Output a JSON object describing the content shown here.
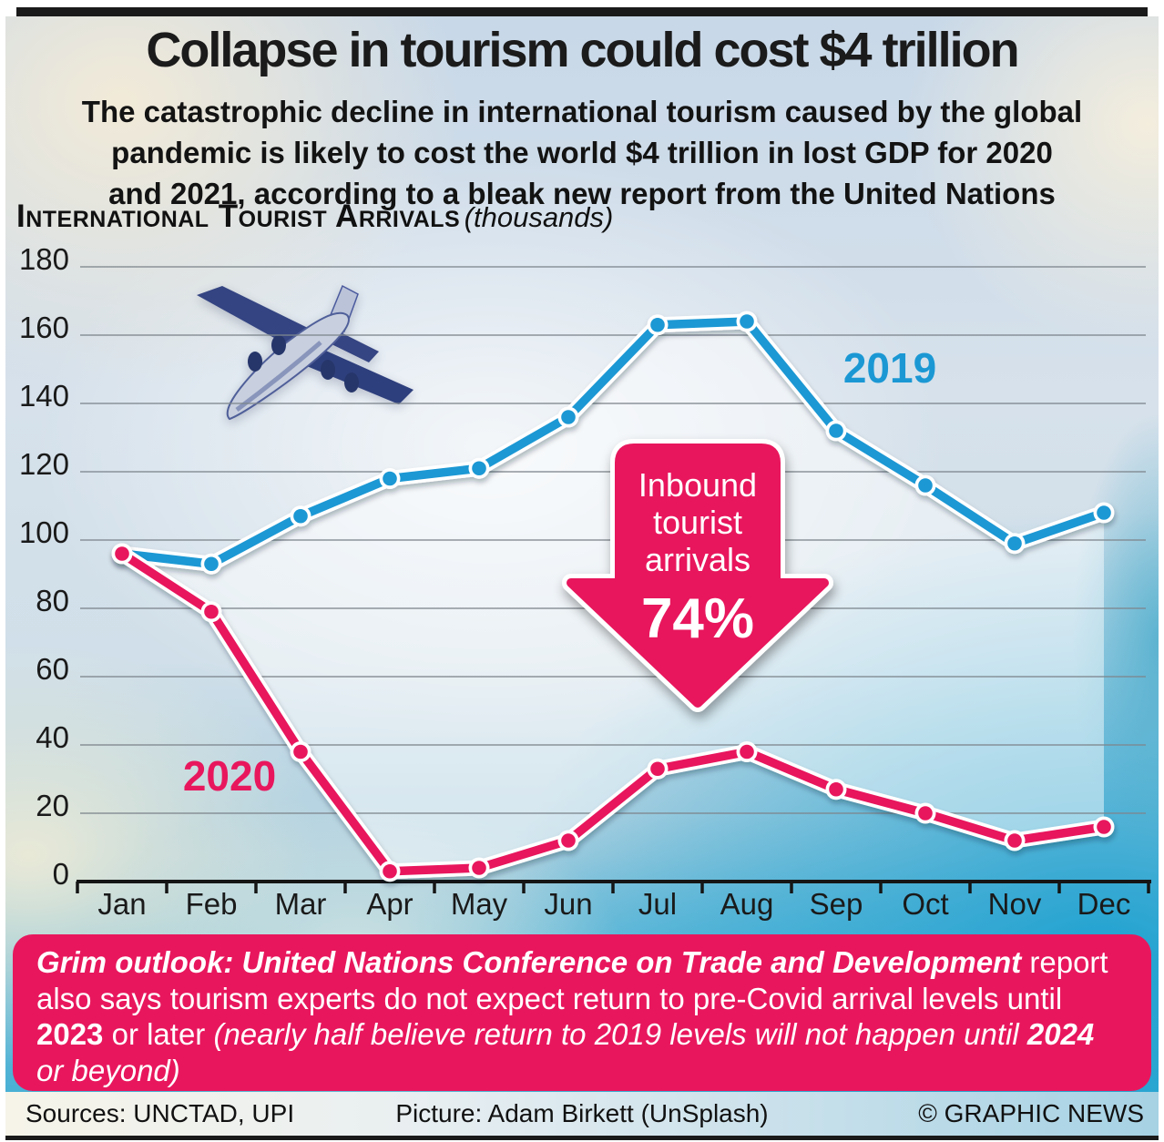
{
  "colors": {
    "blue": "#1b98d4",
    "red": "#e8175d",
    "grid": "#7e868d",
    "ink": "#1a1a1a",
    "fill_between": "rgba(255,255,255,0.47)"
  },
  "header": {
    "title": "Collapse in tourism could cost $4 trillion",
    "subtitle_lines": [
      "The catastrophic decline in international tourism caused by the global",
      "pandemic is likely to cost the world $4 trillion in lost GDP for 2020",
      "and 2021, according to a bleak new report from the United Nations"
    ]
  },
  "section": {
    "label": "International Tourist Arrivals",
    "unit": "(thousands)"
  },
  "chart_data": {
    "type": "line",
    "title": "International Tourist Arrivals (thousands)",
    "categories": [
      "Jan",
      "Feb",
      "Mar",
      "Apr",
      "May",
      "Jun",
      "Jul",
      "Aug",
      "Sep",
      "Oct",
      "Nov",
      "Dec"
    ],
    "series": [
      {
        "name": "2019",
        "color": "#1b98d4",
        "values": [
          96,
          93,
          107,
          118,
          121,
          136,
          163,
          164,
          132,
          116,
          99,
          108
        ]
      },
      {
        "name": "2020",
        "color": "#e8175d",
        "values": [
          96,
          79,
          38,
          3,
          4,
          12,
          33,
          38,
          27,
          20,
          12,
          16
        ]
      }
    ],
    "ylim": [
      0,
      180
    ],
    "y_tick_step": 20,
    "grid": true,
    "legend_position": "inline-labels",
    "annotation": {
      "lines": [
        "Inbound",
        "tourist",
        "arrivals"
      ],
      "value": "74%"
    }
  },
  "grim": {
    "s1": "Grim outlook: ",
    "s2": "United Nations Conference on Trade and Development",
    "s3": " report also says tourism experts do not expect return to pre-Covid arrival levels until ",
    "s4": "2023",
    "s5": " or later ",
    "s6": "(nearly half believe return to 2019 levels will not happen until ",
    "s7": "2024",
    "s8": " or beyond)"
  },
  "footer": {
    "sources": "Sources: UNCTAD, UPI",
    "picture": "Picture: Adam Birkett (UnSplash)",
    "credit": "© GRAPHIC NEWS"
  }
}
